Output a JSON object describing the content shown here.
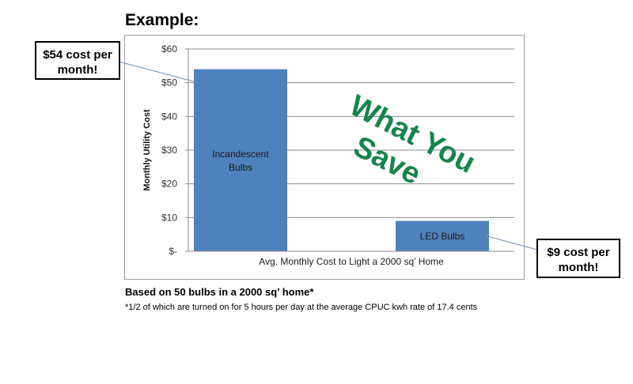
{
  "heading": "Example:",
  "callouts": {
    "left": [
      "$54 cost per",
      "month!"
    ],
    "right": [
      "$9 cost per",
      "month!"
    ]
  },
  "watermark": {
    "line1": "What You",
    "line2": "Save",
    "color": "#17844a"
  },
  "footnote": {
    "main": "Based on 50 bulbs in a 2000 sq’ home*",
    "sub": "*1/2 of which are turned on for 5 hours per day at the average CPUC kwh rate of 17.4 cents"
  },
  "chart_data": {
    "type": "bar",
    "title": "",
    "categories": [
      "Incandescent Bulbs",
      "LED Bulbs"
    ],
    "bar_labels": [
      [
        "Incandescent",
        "Bulbs"
      ],
      [
        "LED Bulbs"
      ]
    ],
    "values": [
      54,
      9
    ],
    "xlabel": "Avg. Monthly Cost to Light a 2000 sq’ Home",
    "ylabel": "Monthly Utility Cost",
    "ylim": [
      0,
      60
    ],
    "yticks": [
      0,
      10,
      20,
      30,
      40,
      50,
      60
    ],
    "ytick_labels": [
      "$-",
      "$10",
      "$20",
      "$30",
      "$40",
      "$50",
      "$60"
    ],
    "grid": true,
    "bar_color": "#4f81bd"
  }
}
